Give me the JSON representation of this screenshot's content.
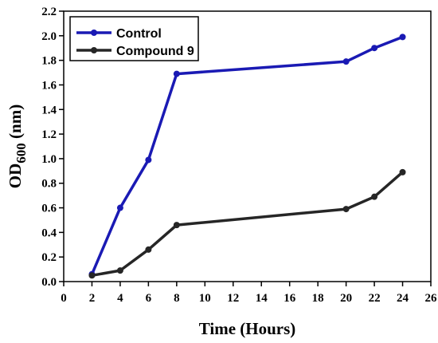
{
  "chart_data": {
    "type": "line",
    "xlabel": "Time (Hours)",
    "ylabel_main": "OD",
    "ylabel_sub": "600",
    "ylabel_unit": " (nm)",
    "xlim": [
      0,
      26
    ],
    "ylim": [
      0,
      2.2
    ],
    "xticks": [
      0,
      2,
      4,
      6,
      8,
      10,
      12,
      14,
      16,
      18,
      20,
      22,
      24,
      26
    ],
    "yticks": [
      0.0,
      0.2,
      0.4,
      0.6,
      0.8,
      1.0,
      1.2,
      1.4,
      1.6,
      1.8,
      2.0,
      2.2
    ],
    "grid": false,
    "legend_position": "top-left",
    "series": [
      {
        "name": "Control",
        "color": "#1a1ab4",
        "x": [
          2,
          4,
          6,
          8,
          20,
          22,
          24
        ],
        "y": [
          0.06,
          0.6,
          0.99,
          1.69,
          1.79,
          1.9,
          1.99
        ]
      },
      {
        "name": "Compound 9",
        "color": "#262626",
        "x": [
          2,
          4,
          6,
          8,
          20,
          22,
          24
        ],
        "y": [
          0.05,
          0.09,
          0.26,
          0.46,
          0.59,
          0.69,
          0.89
        ]
      }
    ]
  }
}
